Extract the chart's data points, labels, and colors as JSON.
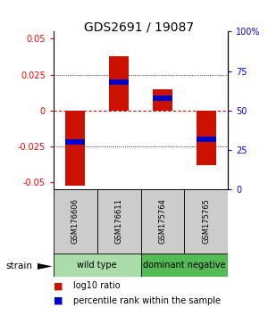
{
  "title": "GDS2691 / 19087",
  "samples": [
    "GSM176606",
    "GSM176611",
    "GSM175764",
    "GSM175765"
  ],
  "log10_ratio": [
    -0.052,
    0.038,
    0.015,
    -0.038
  ],
  "percentile_rank": [
    0.3,
    0.68,
    0.58,
    0.32
  ],
  "groups": [
    {
      "name": "wild type",
      "samples": [
        0,
        1
      ],
      "color": "#aaddaa"
    },
    {
      "name": "dominant negative",
      "samples": [
        2,
        3
      ],
      "color": "#55bb55"
    }
  ],
  "group_label": "strain",
  "ylim": [
    -0.055,
    0.055
  ],
  "yticks_left": [
    -0.05,
    -0.025,
    0,
    0.025,
    0.05
  ],
  "yticks_right_labels": [
    "0",
    "25",
    "50",
    "75",
    "100%"
  ],
  "bar_color": "#cc1100",
  "blue_color": "#0000cc",
  "zero_line_color": "#cc1100",
  "background_color": "#ffffff",
  "plot_bg": "#ffffff",
  "title_fontsize": 10,
  "tick_fontsize": 7,
  "sample_fontsize": 6,
  "group_fontsize": 7,
  "legend_fontsize": 7
}
